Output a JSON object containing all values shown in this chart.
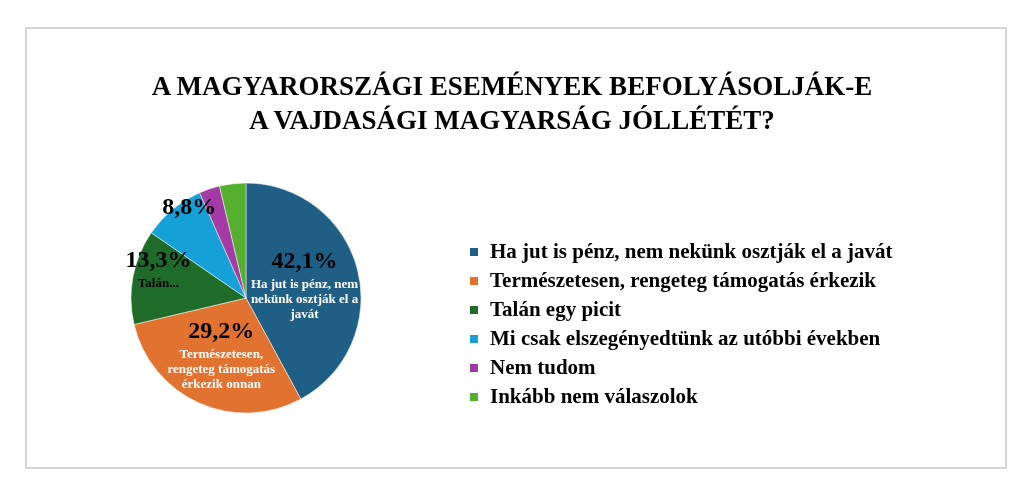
{
  "chart_data": {
    "type": "pie",
    "title": "A MAGYARORSZÁGI ESEMÉNYEK BEFOLYÁSOLJÁK-E\nA VAJDASÁGI MAGYARSÁG JÓLLÉTÉT?",
    "categories": [
      "Ha jut is pénz, nem nekünk osztják el a javát",
      "Természetesen, rengeteg támogatás érkezik",
      "Talán egy picit",
      "Mi csak elszegényedtünk az utóbbi években",
      "Nem tudom",
      "Inkább nem válaszolok"
    ],
    "values": [
      42.1,
      29.2,
      13.3,
      8.8,
      2.9,
      3.7
    ],
    "colors": [
      "#1f5f85",
      "#e2722f",
      "#1e6b2a",
      "#15a0d8",
      "#a33aa5",
      "#55b030"
    ],
    "value_labels": [
      "42,1%",
      "29,2%",
      "13,3%",
      "8,8%",
      null,
      null
    ],
    "annotations": [
      {
        "text": "Ha jut is pénz, nem nekünk osztják el a javát",
        "x": "Ha jut is pénz, nem nekünk osztják el a javát"
      },
      {
        "text": "Természetesen, rengeteg támogatás érkezik onnan",
        "x": "Természetesen, rengeteg támogatás érkezik"
      },
      {
        "text": "Talán...",
        "x": "Talán egy picit"
      }
    ],
    "legend": "right"
  }
}
